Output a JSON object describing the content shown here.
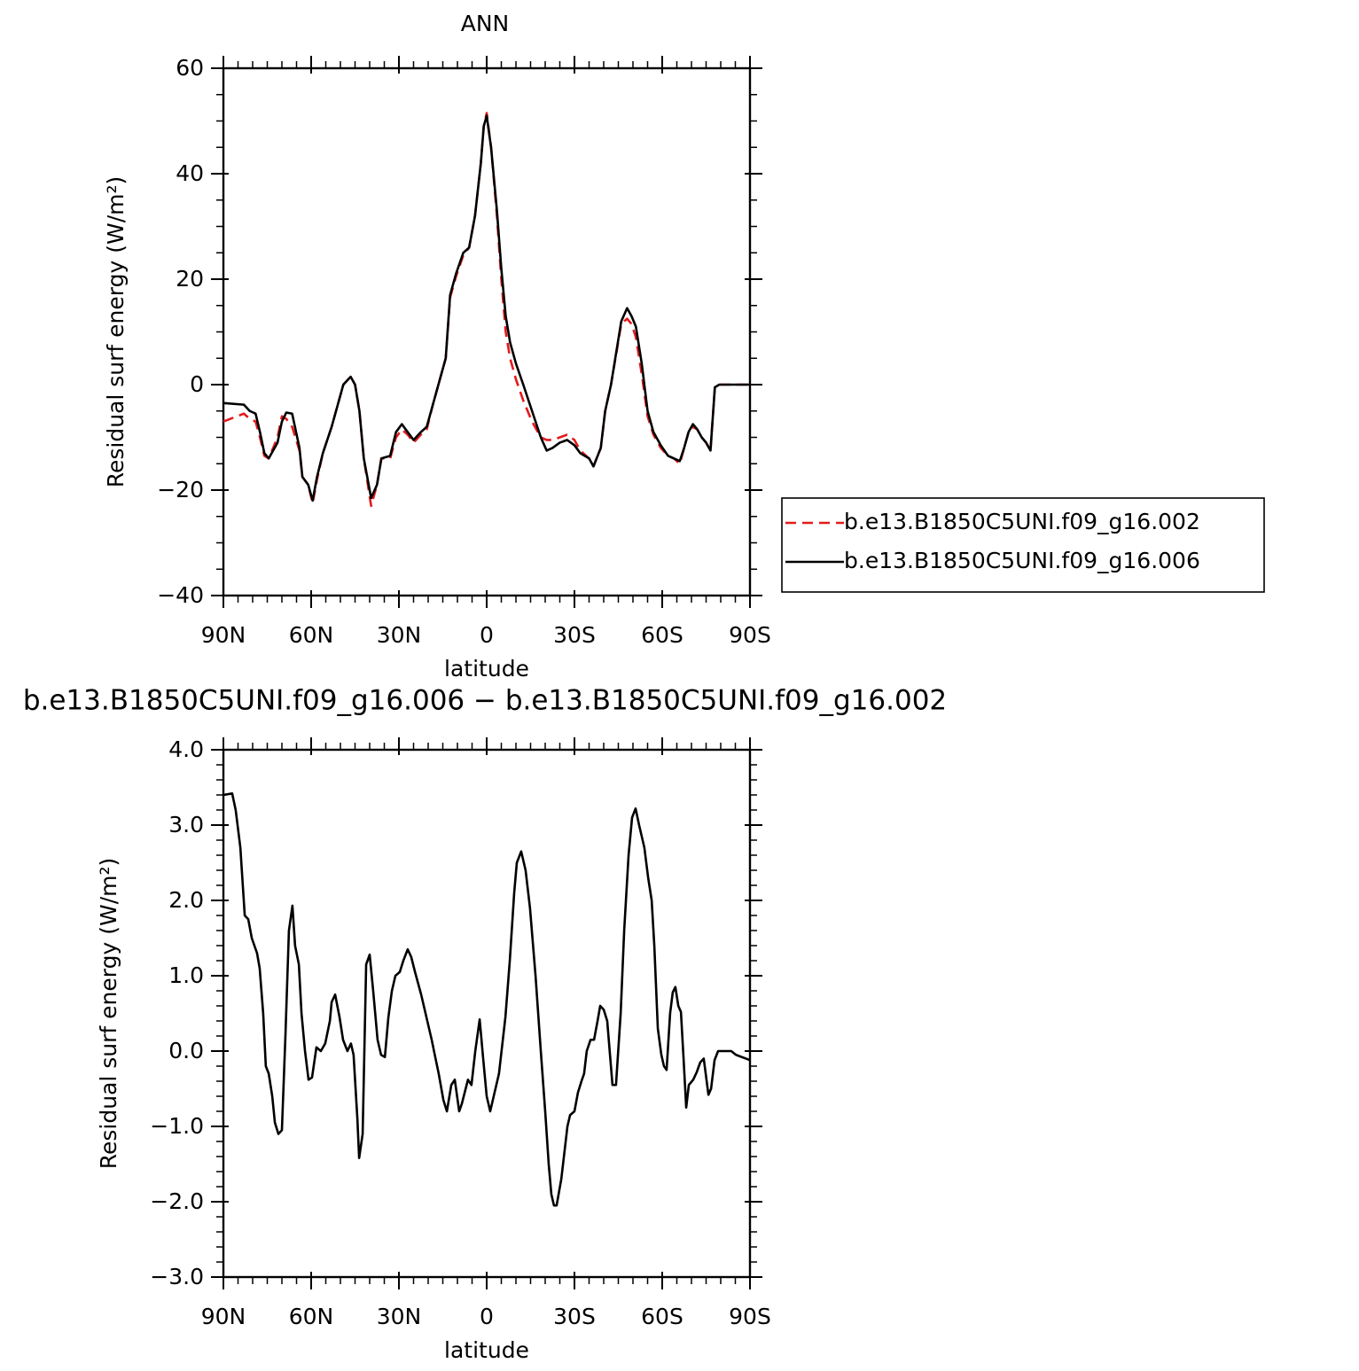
{
  "chart_data": [
    {
      "type": "line",
      "title": "ANN",
      "xlabel": "latitude",
      "ylabel": "Residual surf energy (W/m²)",
      "x": [
        90,
        83,
        81,
        79,
        77.5,
        76,
        74.5,
        71.5,
        70,
        68.5,
        66.5,
        64,
        63,
        61,
        59.5,
        58,
        56,
        53,
        51,
        49,
        46.5,
        45,
        43.5,
        42,
        39.5,
        37.5,
        36,
        33,
        31,
        29,
        27,
        25,
        22.5,
        20.5,
        18.5,
        16.5,
        14,
        12.5,
        10.5,
        8,
        6,
        4,
        2,
        1,
        0,
        -1.5,
        -3.5,
        -5,
        -6.5,
        -8,
        -10,
        -12.5,
        -15.5,
        -18.5,
        -20.5,
        -22.5,
        -25,
        -27.5,
        -30,
        -32,
        -35,
        -36.5,
        -39,
        -40.5,
        -42.5,
        -46,
        -48,
        -49.5,
        -51,
        -53,
        -55,
        -57,
        -59.5,
        -62,
        -64,
        -66,
        -67.5,
        -69,
        -70.5,
        -72,
        -73.5,
        -75,
        -76.5,
        -78,
        -79.5,
        -90
      ],
      "series": [
        {
          "name": "b.e13.B1850C5UNI.f09_g16.002",
          "color": "#e41a1c",
          "dash": true,
          "values": [
            -7,
            -5.5,
            -6.5,
            -7,
            -10,
            -13.5,
            -14,
            -10,
            -6,
            -6.5,
            -8,
            -12.5,
            -17.5,
            -19,
            -22.5,
            -18,
            -13,
            -8,
            -4,
            0,
            1.5,
            0,
            -5,
            -14,
            -23,
            -19,
            -14,
            -14,
            -10,
            -8.5,
            -9.5,
            -11,
            -9.5,
            -8.5,
            -4,
            0,
            5,
            16.5,
            20.5,
            24.5,
            26,
            32,
            42,
            49,
            51.5,
            45,
            32,
            20,
            10,
            5,
            1,
            -3,
            -7,
            -10,
            -10.5,
            -10.5,
            -10,
            -9.5,
            -10.5,
            -12.5,
            -14,
            -15.5,
            -12,
            -5,
            0,
            11.5,
            12.5,
            11.5,
            9,
            2,
            -6,
            -9.5,
            -12,
            -13.5,
            -14,
            -15,
            -12,
            -9,
            -8,
            -8.5,
            -10,
            -11,
            -12.5,
            -0.5,
            0,
            0
          ]
        },
        {
          "name": "b.e13.B1850C5UNI.f09_g16.006",
          "color": "#000000",
          "dash": false,
          "values": [
            -3.5,
            -3.8,
            -5,
            -5.5,
            -9,
            -13,
            -14,
            -11,
            -7,
            -5.3,
            -5.5,
            -12,
            -17.5,
            -19,
            -22,
            -17.5,
            -13,
            -8,
            -4,
            0,
            1.5,
            0,
            -5,
            -14,
            -21.5,
            -19,
            -14,
            -13.5,
            -9,
            -7.5,
            -9,
            -10.5,
            -9,
            -8,
            -4,
            0,
            5,
            17,
            21,
            25,
            26,
            32,
            42,
            49,
            51,
            45,
            33,
            22,
            13,
            8,
            4,
            0,
            -5,
            -10,
            -12.5,
            -12,
            -11,
            -10.5,
            -11.5,
            -13,
            -14,
            -15.5,
            -12,
            -5,
            0,
            12,
            14.5,
            13,
            11,
            4,
            -5,
            -9,
            -11.5,
            -13.5,
            -14,
            -14.5,
            -12,
            -9,
            -7.5,
            -8.5,
            -10,
            -11,
            -12.5,
            -0.5,
            0,
            0
          ]
        }
      ],
      "xlim": [
        90,
        -90
      ],
      "xticks": [
        {
          "value": 90,
          "label": "90N"
        },
        {
          "value": 60,
          "label": "60N"
        },
        {
          "value": 30,
          "label": "30N"
        },
        0,
        {
          "value": -30,
          "label": "30S"
        },
        {
          "value": -60,
          "label": "60S"
        },
        {
          "value": -90,
          "label": "90S"
        }
      ],
      "ylim": [
        -40,
        60
      ],
      "yticks": [
        {
          "value": -40,
          "label": "−40"
        },
        {
          "value": -20,
          "label": "−20"
        },
        0,
        20,
        40,
        60
      ],
      "legend": "right"
    },
    {
      "type": "line",
      "title": "b.e13.B1850C5UNI.f09_g16.006 − b.e13.B1850C5UNI.f09_g16.002",
      "xlabel": "latitude",
      "ylabel": "Residual surf energy (W/m²)",
      "x": [
        90,
        87,
        85.8,
        84.2,
        82.7,
        81.5,
        80.3,
        78.5,
        77.6,
        76.4,
        75.5,
        74.5,
        73.3,
        72.4,
        71.2,
        70,
        68.8,
        67.6,
        66.4,
        65.5,
        64.2,
        63.3,
        62.1,
        60.9,
        59.7,
        58.2,
        56.7,
        55.2,
        53.6,
        53,
        51.8,
        50.3,
        49.1,
        47.6,
        46.4,
        45.5,
        44.2,
        43.6,
        42.4,
        41.2,
        40,
        38.8,
        37.3,
        36.1,
        34.8,
        33.6,
        32.4,
        31.2,
        29.7,
        28.5,
        27,
        25.8,
        24.5,
        22.4,
        20,
        18.8,
        17.9,
        16.4,
        14.8,
        13.6,
        12.1,
        10.9,
        9.4,
        8.5,
        6.4,
        5.2,
        3.9,
        2.4,
        1.2,
        0,
        -1.2,
        -2.4,
        -4.2,
        -6.4,
        -7.9,
        -9.4,
        -10.3,
        -11.8,
        -13.3,
        -14.8,
        -16.7,
        -18.5,
        -20,
        -21.2,
        -22.1,
        -23,
        -23.9,
        -25.5,
        -26.7,
        -27.6,
        -28.5,
        -30,
        -31.2,
        -32.4,
        -33.3,
        -34.2,
        -35.5,
        -36.7,
        -37.9,
        -38.8,
        -40,
        -41.2,
        -43,
        -44.2,
        -45.8,
        -47,
        -48.5,
        -49.7,
        -50.9,
        -52.1,
        -53.9,
        -55.2,
        -56.4,
        -57.3,
        -58.5,
        -59.7,
        -60.6,
        -61.5,
        -62.7,
        -63.6,
        -64.5,
        -65.5,
        -66.4,
        -67.3,
        -68.2,
        -69.1,
        -70.6,
        -71.8,
        -73,
        -74.2,
        -75.8,
        -76.7,
        -77.9,
        -79.1,
        -82.1,
        -83.6,
        -85.2,
        -90
      ],
      "series": [
        {
          "color": "#000000",
          "dash": false,
          "values": [
            3.4,
            3.42,
            3.2,
            2.7,
            1.8,
            1.75,
            1.5,
            1.3,
            1.1,
            0.5,
            -0.2,
            -0.3,
            -0.6,
            -0.95,
            -1.1,
            -1.05,
            0.2,
            1.6,
            1.93,
            1.4,
            1.15,
            0.5,
            0,
            -0.38,
            -0.35,
            0.05,
            0,
            0.1,
            0.4,
            0.65,
            0.75,
            0.45,
            0.15,
            0,
            0.1,
            -0.05,
            -0.9,
            -1.42,
            -1.1,
            1.15,
            1.28,
            0.8,
            0.15,
            -0.05,
            -0.08,
            0.45,
            0.8,
            1,
            1.05,
            1.2,
            1.35,
            1.25,
            1.05,
            0.75,
            0.35,
            0.15,
            -0.02,
            -0.3,
            -0.65,
            -0.8,
            -0.45,
            -0.38,
            -0.8,
            -0.7,
            -0.38,
            -0.45,
            0,
            0.42,
            -0.1,
            -0.6,
            -0.8,
            -0.6,
            -0.3,
            0.45,
            1.2,
            2.1,
            2.5,
            2.65,
            2.4,
            1.9,
            1,
            0,
            -0.8,
            -1.5,
            -1.9,
            -2.05,
            -2.05,
            -1.7,
            -1.3,
            -1,
            -0.85,
            -0.8,
            -0.55,
            -0.4,
            -0.3,
            0,
            0.15,
            0.15,
            0.4,
            0.6,
            0.55,
            0.4,
            -0.45,
            -0.45,
            0.5,
            1.6,
            2.6,
            3.1,
            3.22,
            3,
            2.7,
            2.3,
            2,
            1.4,
            0.3,
            -0.05,
            -0.2,
            -0.25,
            0.5,
            0.78,
            0.85,
            0.6,
            0.52,
            -0.1,
            -0.75,
            -0.45,
            -0.38,
            -0.28,
            -0.15,
            -0.1,
            -0.58,
            -0.5,
            -0.12,
            0,
            0,
            0,
            -0.05,
            -0.12
          ]
        }
      ],
      "xlim": [
        90,
        -90
      ],
      "xticks": [
        {
          "value": 90,
          "label": "90N"
        },
        {
          "value": 60,
          "label": "60N"
        },
        {
          "value": 30,
          "label": "30N"
        },
        0,
        {
          "value": -30,
          "label": "30S"
        },
        {
          "value": -60,
          "label": "60S"
        },
        {
          "value": -90,
          "label": "90S"
        }
      ],
      "ylim": [
        -3,
        4
      ],
      "yticks": [
        {
          "value": -3,
          "label": "−3.0"
        },
        {
          "value": -2,
          "label": "−2.0"
        },
        {
          "value": -1,
          "label": "−1.0"
        },
        {
          "value": 0,
          "label": "0.0"
        },
        {
          "value": 1,
          "label": "1.0"
        },
        {
          "value": 2,
          "label": "2.0"
        },
        {
          "value": 3,
          "label": "3.0"
        },
        {
          "value": 4,
          "label": "4.0"
        }
      ]
    }
  ]
}
